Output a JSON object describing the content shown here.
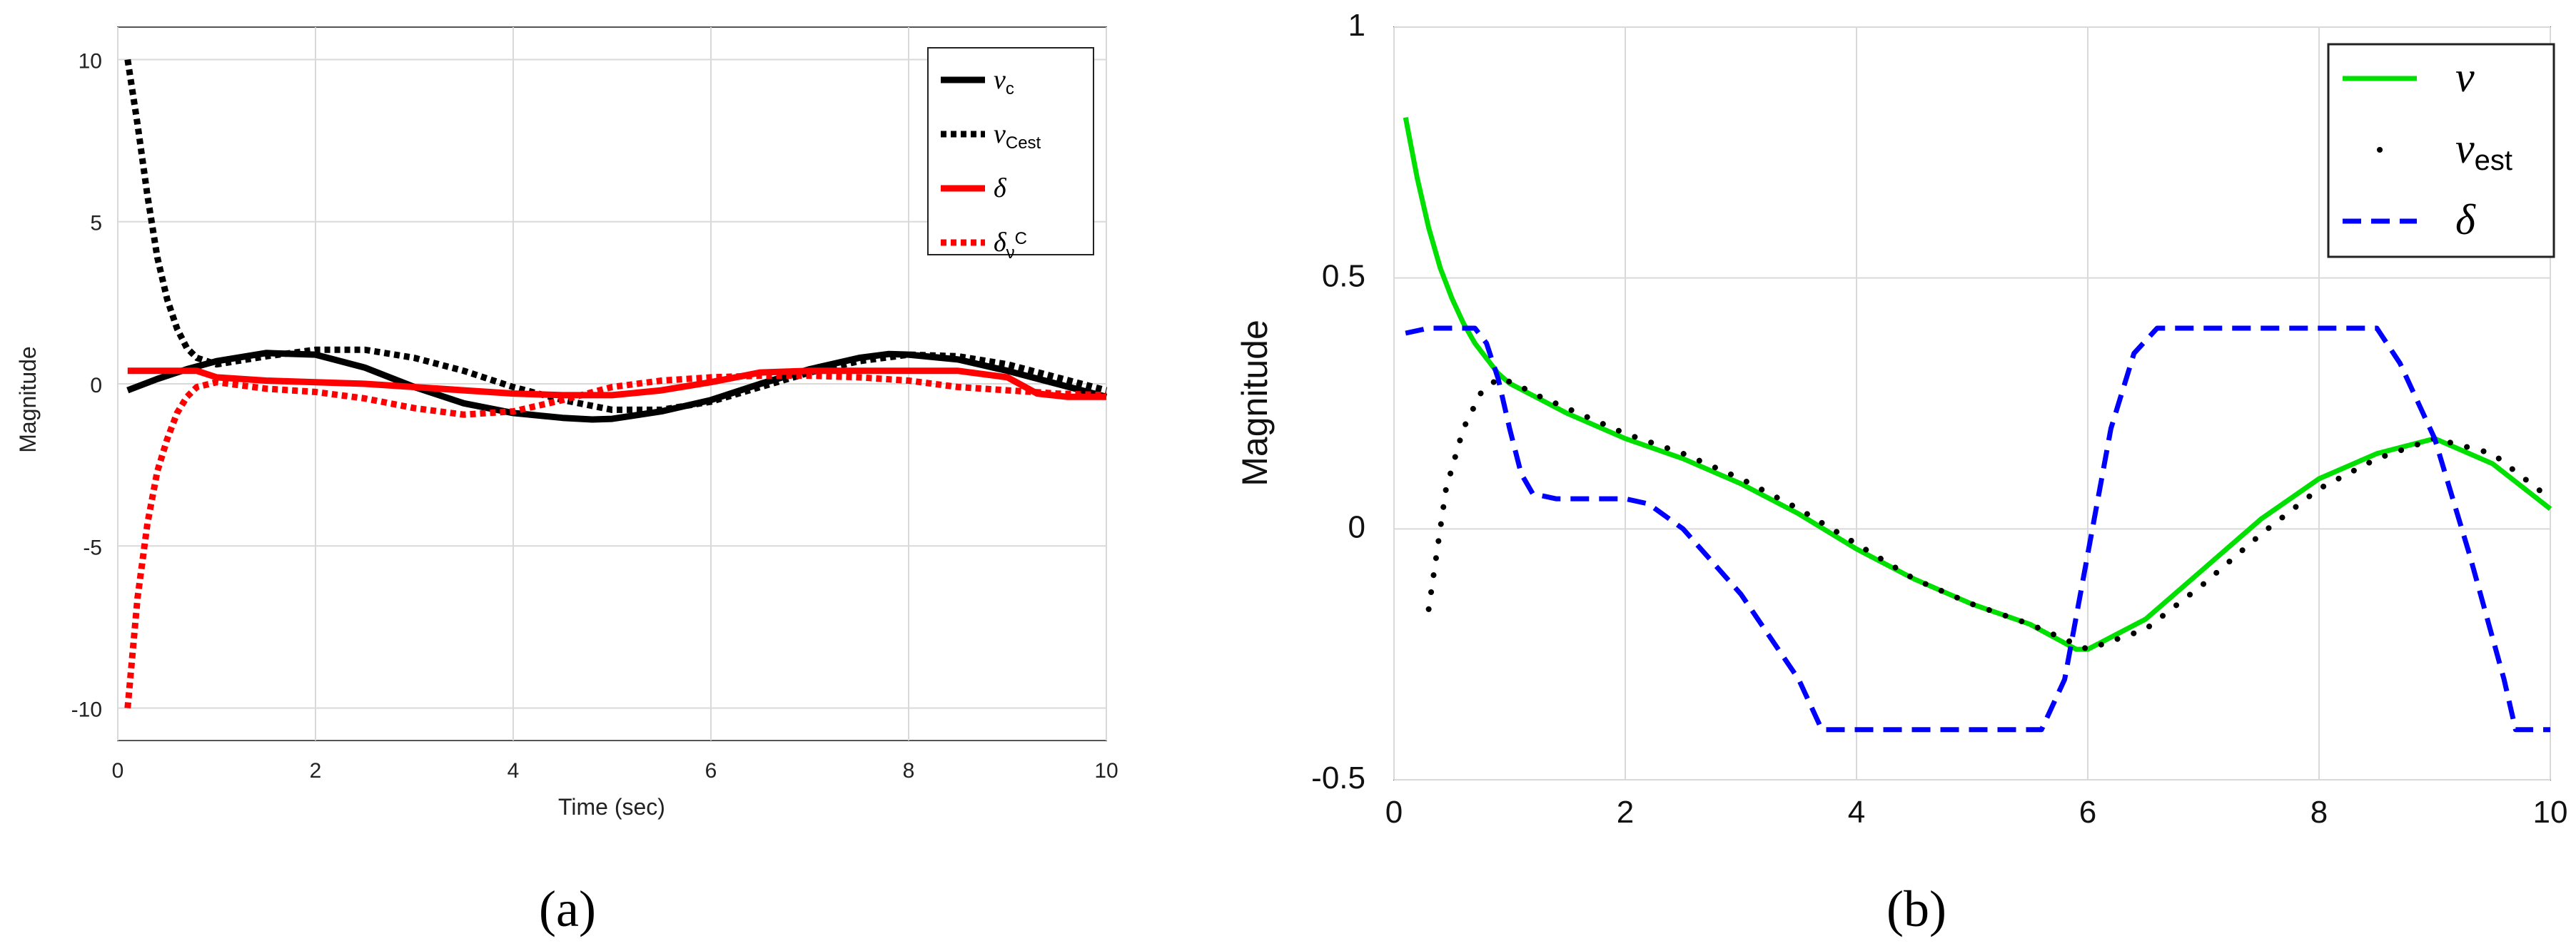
{
  "chart_data": [
    {
      "id": "a",
      "panel_label": "(a)",
      "type": "line",
      "xlabel": "Time (sec)",
      "ylabel": "Magnitude",
      "xlim": [
        0,
        10
      ],
      "ylim": [
        -11,
        11
      ],
      "xticks": [
        0,
        2,
        4,
        6,
        8,
        10
      ],
      "yticks": [
        -10,
        -5,
        0,
        5,
        10
      ],
      "grid": true,
      "legend_position": "top-right",
      "series": [
        {
          "name": "ν_c",
          "legend_main": "ν",
          "legend_sub": "c",
          "legend_sub_type": "sub",
          "color": "#000000",
          "style": "solid",
          "x": [
            0.1,
            0.4,
            0.7,
            1.0,
            1.5,
            2.0,
            2.5,
            3.0,
            3.5,
            4.0,
            4.5,
            4.8,
            5.0,
            5.5,
            6.0,
            6.5,
            7.0,
            7.5,
            7.8,
            8.0,
            8.5,
            9.0,
            9.5,
            10.0
          ],
          "y": [
            -0.2,
            0.15,
            0.45,
            0.7,
            0.95,
            0.9,
            0.5,
            -0.1,
            -0.6,
            -0.9,
            -1.05,
            -1.1,
            -1.08,
            -0.85,
            -0.5,
            0.0,
            0.45,
            0.8,
            0.92,
            0.9,
            0.75,
            0.4,
            0.0,
            -0.4
          ]
        },
        {
          "name": "ν_Cest",
          "legend_main": "ν",
          "legend_sub": "Cest",
          "legend_sub_type": "sub",
          "color": "#000000",
          "style": "dotted",
          "x": [
            0.1,
            0.2,
            0.3,
            0.4,
            0.5,
            0.6,
            0.7,
            0.8,
            1.0,
            1.5,
            2.0,
            2.5,
            3.0,
            3.5,
            4.0,
            4.5,
            5.0,
            5.5,
            6.0,
            6.5,
            7.0,
            7.5,
            8.0,
            8.5,
            9.0,
            9.5,
            10.0
          ],
          "y": [
            10.0,
            8.0,
            5.8,
            3.9,
            2.6,
            1.7,
            1.1,
            0.8,
            0.6,
            0.85,
            1.05,
            1.05,
            0.8,
            0.4,
            -0.1,
            -0.5,
            -0.8,
            -0.8,
            -0.55,
            -0.1,
            0.35,
            0.7,
            0.9,
            0.85,
            0.6,
            0.2,
            -0.2
          ]
        },
        {
          "name": "δ",
          "legend_main": "δ",
          "legend_sub": "",
          "legend_sub_type": "none",
          "color": "#ff0000",
          "style": "solid",
          "x": [
            0.1,
            0.5,
            0.8,
            1.0,
            1.5,
            2.0,
            2.5,
            3.0,
            3.5,
            4.0,
            4.5,
            5.0,
            5.5,
            6.0,
            6.5,
            7.0,
            7.5,
            8.0,
            8.5,
            9.0,
            9.3,
            9.6,
            10.0
          ],
          "y": [
            0.4,
            0.4,
            0.4,
            0.2,
            0.1,
            0.05,
            0.0,
            -0.1,
            -0.2,
            -0.3,
            -0.35,
            -0.35,
            -0.2,
            0.05,
            0.35,
            0.4,
            0.4,
            0.4,
            0.4,
            0.2,
            -0.3,
            -0.4,
            -0.4
          ]
        },
        {
          "name": "δ_ν^C",
          "legend_main": "δ",
          "legend_sub": "ν",
          "legend_sup": "C",
          "legend_sub_type": "subsup",
          "color": "#ff0000",
          "style": "dotted",
          "x": [
            0.1,
            0.2,
            0.3,
            0.4,
            0.5,
            0.6,
            0.7,
            0.8,
            1.0,
            1.5,
            2.0,
            2.5,
            3.0,
            3.5,
            4.0,
            4.5,
            5.0,
            5.5,
            6.0,
            6.5,
            7.0,
            7.5,
            8.0,
            8.5,
            9.0,
            9.5,
            10.0
          ],
          "y": [
            -10.0,
            -6.6,
            -4.3,
            -2.7,
            -1.7,
            -0.9,
            -0.4,
            -0.1,
            0.05,
            -0.15,
            -0.25,
            -0.45,
            -0.75,
            -0.95,
            -0.85,
            -0.5,
            -0.1,
            0.1,
            0.2,
            0.25,
            0.25,
            0.2,
            0.1,
            -0.1,
            -0.2,
            -0.3,
            -0.35
          ]
        }
      ]
    },
    {
      "id": "b",
      "panel_label": "(b)",
      "type": "line",
      "xlabel": "",
      "ylabel": "Magnitude",
      "xlim": [
        0,
        10
      ],
      "ylim": [
        -0.5,
        1
      ],
      "xticks": [
        0,
        2,
        4,
        6,
        8,
        10
      ],
      "yticks": [
        -0.5,
        0,
        0.5,
        1
      ],
      "ytick_labels": [
        "-0.5",
        "0",
        "0.5",
        "1"
      ],
      "grid": true,
      "legend_position": "top-right",
      "series": [
        {
          "name": "ν",
          "legend_main": "ν",
          "legend_sub": "",
          "legend_sub_type": "none",
          "color": "#00e000",
          "style": "solid",
          "x": [
            0.1,
            0.2,
            0.3,
            0.4,
            0.5,
            0.6,
            0.7,
            0.8,
            0.9,
            1.0,
            1.5,
            2.0,
            2.5,
            3.0,
            3.5,
            4.0,
            4.5,
            5.0,
            5.5,
            5.9,
            6.0,
            6.5,
            7.0,
            7.5,
            8.0,
            8.5,
            9.0,
            9.5,
            10.0
          ],
          "y": [
            0.82,
            0.7,
            0.6,
            0.52,
            0.46,
            0.41,
            0.37,
            0.34,
            0.31,
            0.29,
            0.23,
            0.18,
            0.14,
            0.09,
            0.03,
            -0.04,
            -0.1,
            -0.15,
            -0.19,
            -0.24,
            -0.24,
            -0.18,
            -0.08,
            0.02,
            0.1,
            0.15,
            0.18,
            0.13,
            0.04
          ]
        },
        {
          "name": "ν_est",
          "legend_main": "ν",
          "legend_sub": "est",
          "legend_sub_type": "sub",
          "color": "#000000",
          "style": "dotted",
          "x": [
            0.3,
            0.45,
            0.6,
            0.75,
            0.9,
            1.05,
            1.2,
            1.5,
            2.0,
            2.5,
            3.0,
            3.5,
            4.0,
            4.5,
            5.0,
            5.5,
            6.0,
            6.5,
            7.0,
            7.5,
            8.0,
            8.5,
            9.0,
            9.5,
            10.0
          ],
          "y": [
            -0.16,
            0.08,
            0.2,
            0.27,
            0.3,
            0.29,
            0.27,
            0.24,
            0.19,
            0.15,
            0.1,
            0.04,
            -0.03,
            -0.1,
            -0.15,
            -0.19,
            -0.24,
            -0.2,
            -0.11,
            -0.01,
            0.08,
            0.14,
            0.18,
            0.15,
            0.06
          ]
        },
        {
          "name": "δ",
          "legend_main": "δ",
          "legend_sub": "",
          "legend_sub_type": "none",
          "color": "#0000ff",
          "style": "dashed",
          "x": [
            0.1,
            0.3,
            0.7,
            0.8,
            0.9,
            1.0,
            1.1,
            1.2,
            1.4,
            1.6,
            1.8,
            2.0,
            2.2,
            2.5,
            3.0,
            3.5,
            3.7,
            4.0,
            5.0,
            5.6,
            5.8,
            6.0,
            6.2,
            6.4,
            6.6,
            7.0,
            8.0,
            8.5,
            8.7,
            9.0,
            9.3,
            9.6,
            9.7,
            10.0
          ],
          "y": [
            0.39,
            0.4,
            0.4,
            0.37,
            0.3,
            0.2,
            0.11,
            0.07,
            0.06,
            0.06,
            0.06,
            0.06,
            0.05,
            0.0,
            -0.13,
            -0.3,
            -0.4,
            -0.4,
            -0.4,
            -0.4,
            -0.3,
            -0.05,
            0.2,
            0.35,
            0.4,
            0.4,
            0.4,
            0.4,
            0.33,
            0.18,
            -0.05,
            -0.3,
            -0.4,
            -0.4
          ]
        }
      ]
    }
  ]
}
